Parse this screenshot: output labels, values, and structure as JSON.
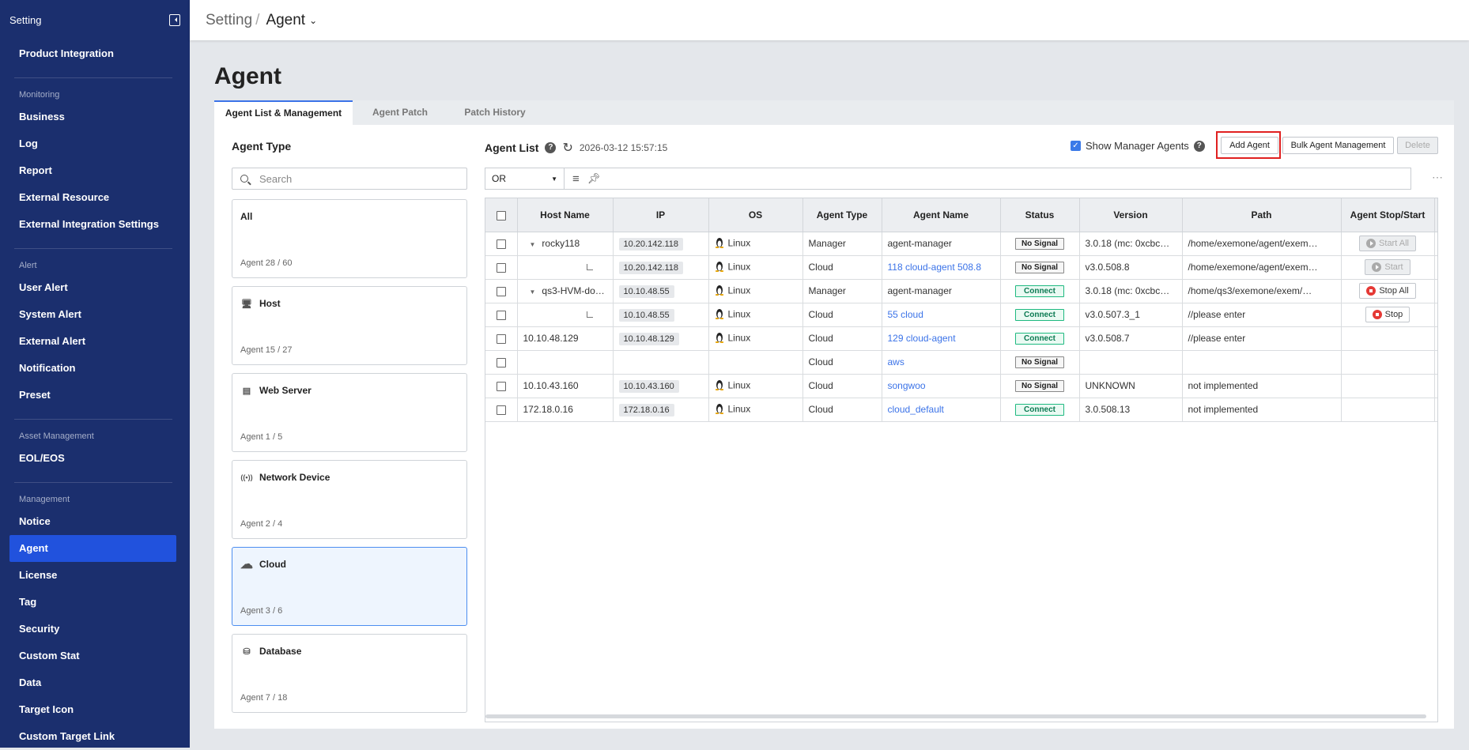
{
  "sidebar": {
    "title": "Setting",
    "items_top": [
      {
        "label": "Product Integration"
      }
    ],
    "sections": [
      {
        "label": "Monitoring",
        "items": [
          "Business",
          "Log",
          "Report",
          "External Resource",
          "External Integration Settings"
        ]
      },
      {
        "label": "Alert",
        "items": [
          "User Alert",
          "System Alert",
          "External Alert",
          "Notification",
          "Preset"
        ]
      },
      {
        "label": "Asset Management",
        "items": [
          "EOL/EOS"
        ]
      },
      {
        "label": "Management",
        "items": [
          "Notice",
          "Agent",
          "License",
          "Tag",
          "Security",
          "Custom Stat",
          "Data",
          "Target Icon",
          "Custom Target Link"
        ]
      }
    ],
    "active": "Agent"
  },
  "header": {
    "breadcrumb_root": "Setting",
    "breadcrumb_sep": "/",
    "breadcrumb_current": "Agent"
  },
  "page": {
    "title": "Agent",
    "tabs": [
      "Agent List & Management",
      "Agent Patch",
      "Patch History"
    ],
    "active_tab": 0
  },
  "agent_type": {
    "title": "Agent Type",
    "search_placeholder": "Search",
    "cards": [
      {
        "name": "All",
        "icon": "",
        "count": "Agent 28 / 60"
      },
      {
        "name": "Host",
        "icon": "monitor-icon",
        "count": "Agent 15 / 27"
      },
      {
        "name": "Web Server",
        "icon": "web-server-icon",
        "count": "Agent 1 / 5"
      },
      {
        "name": "Network Device",
        "icon": "network-signal-icon",
        "count": "Agent 2 / 4"
      },
      {
        "name": "Cloud",
        "icon": "cloud-icon",
        "count": "Agent 3 / 6",
        "active": true
      },
      {
        "name": "Database",
        "icon": "database-icon",
        "count": "Agent 7 / 18"
      }
    ]
  },
  "agent_list": {
    "title": "Agent List",
    "timestamp": "2026-03-12 15:57:15",
    "show_manager_label": "Show Manager Agents",
    "show_manager_checked": true,
    "add_label": "Add Agent",
    "bulk_label": "Bulk Agent Management",
    "delete_label": "Delete",
    "filter_op": "OR",
    "columns": [
      "Host Name",
      "IP",
      "OS",
      "Agent Type",
      "Agent Name",
      "Status",
      "Version",
      "Path",
      "Agent Stop/Start"
    ],
    "rows": [
      {
        "tree": "parent",
        "host": "rocky118",
        "ip": "10.20.142.118",
        "os": "Linux",
        "type": "Manager",
        "name": "agent-manager",
        "link": false,
        "status": "No Signal",
        "version": "3.0.18 (mc: 0xcbc…",
        "path": "/home/exemone/agent/exem…",
        "action": "Start All",
        "action_kind": "start-disabled"
      },
      {
        "tree": "child",
        "host": "",
        "ip": "10.20.142.118",
        "os": "Linux",
        "type": "Cloud",
        "name": "118 cloud-agent 508.8",
        "link": true,
        "status": "No Signal",
        "version": "v3.0.508.8",
        "path": "/home/exemone/agent/exem…",
        "action": "Start",
        "action_kind": "start-disabled"
      },
      {
        "tree": "parent",
        "host": "qs3-HVM-do…",
        "ip": "10.10.48.55",
        "os": "Linux",
        "type": "Manager",
        "name": "agent-manager",
        "link": false,
        "status": "Connect",
        "version": "3.0.18 (mc: 0xcbc…",
        "path": "/home/qs3/exemone/exem/…",
        "action": "Stop All",
        "action_kind": "stop"
      },
      {
        "tree": "child",
        "host": "",
        "ip": "10.10.48.55",
        "os": "Linux",
        "type": "Cloud",
        "name": "55 cloud",
        "link": true,
        "status": "Connect",
        "version": "v3.0.507.3_1",
        "path": "//please enter",
        "action": "Stop",
        "action_kind": "stop"
      },
      {
        "tree": "",
        "host": "10.10.48.129",
        "ip": "10.10.48.129",
        "os": "Linux",
        "type": "Cloud",
        "name": "129 cloud-agent",
        "link": true,
        "status": "Connect",
        "version": "v3.0.508.7",
        "path": "//please enter",
        "action": "",
        "action_kind": ""
      },
      {
        "tree": "",
        "host": "",
        "ip": "",
        "os": "",
        "type": "Cloud",
        "name": "aws",
        "link": true,
        "status": "No Signal",
        "version": "",
        "path": "",
        "action": "",
        "action_kind": ""
      },
      {
        "tree": "",
        "host": "10.10.43.160",
        "ip": "10.10.43.160",
        "os": "Linux",
        "type": "Cloud",
        "name": "songwoo",
        "link": true,
        "status": "No Signal",
        "version": "UNKNOWN",
        "path": "not implemented",
        "action": "",
        "action_kind": ""
      },
      {
        "tree": "",
        "host": "172.18.0.16",
        "ip": "172.18.0.16",
        "os": "Linux",
        "type": "Cloud",
        "name": "cloud_default",
        "link": true,
        "status": "Connect",
        "version": "3.0.508.13",
        "path": "not implemented",
        "action": "",
        "action_kind": ""
      }
    ]
  },
  "colors": {
    "sidebar_bg": "#1b2f6e",
    "active_item": "#2152dd",
    "link": "#3b73e8",
    "connect": "#1eb980",
    "stop": "#e53935",
    "highlight_box": "#e02020"
  }
}
